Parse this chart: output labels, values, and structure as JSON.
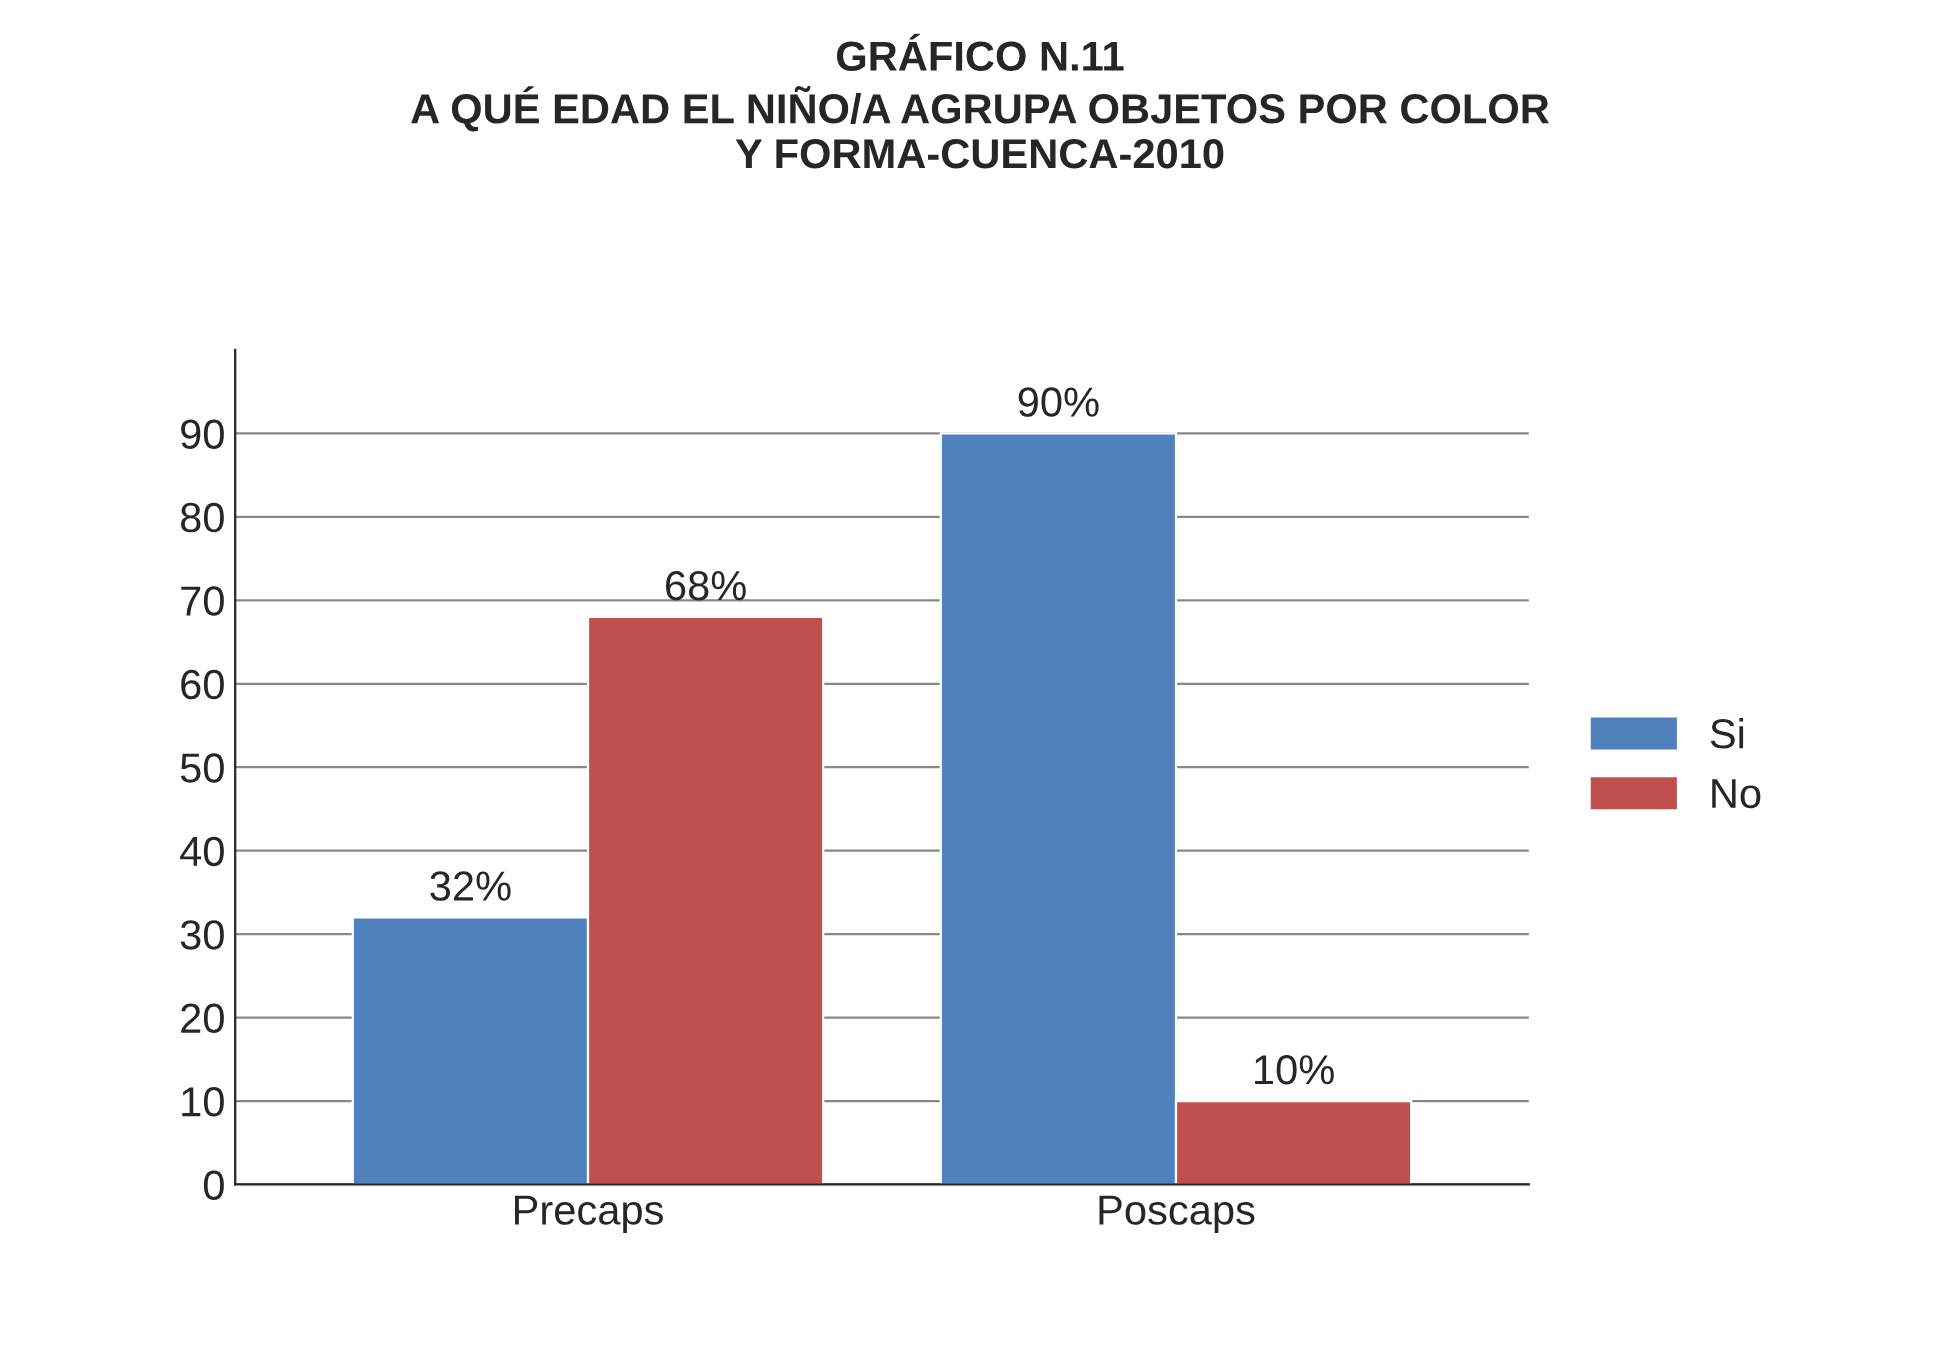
{
  "chart_data": {
    "type": "bar",
    "title": "GRÁFICO N.11\nA QUÉ EDAD EL NIÑO/A AGRUPA OBJETOS POR COLOR\nY FORMA-CUENCA-2010",
    "categories": [
      "Precaps",
      "Poscaps"
    ],
    "series": [
      {
        "name": "Si",
        "color": "#4f81bd",
        "values": [
          32,
          90
        ],
        "value_labels": [
          "32%",
          "90%"
        ]
      },
      {
        "name": "No",
        "color": "#c0504d",
        "values": [
          68,
          10
        ],
        "value_labels": [
          "68%",
          "10%"
        ]
      }
    ],
    "ylim": [
      0,
      100
    ],
    "yticks": [
      0,
      10,
      20,
      30,
      40,
      50,
      60,
      70,
      80,
      90
    ],
    "grid": "y",
    "legend": "right"
  }
}
